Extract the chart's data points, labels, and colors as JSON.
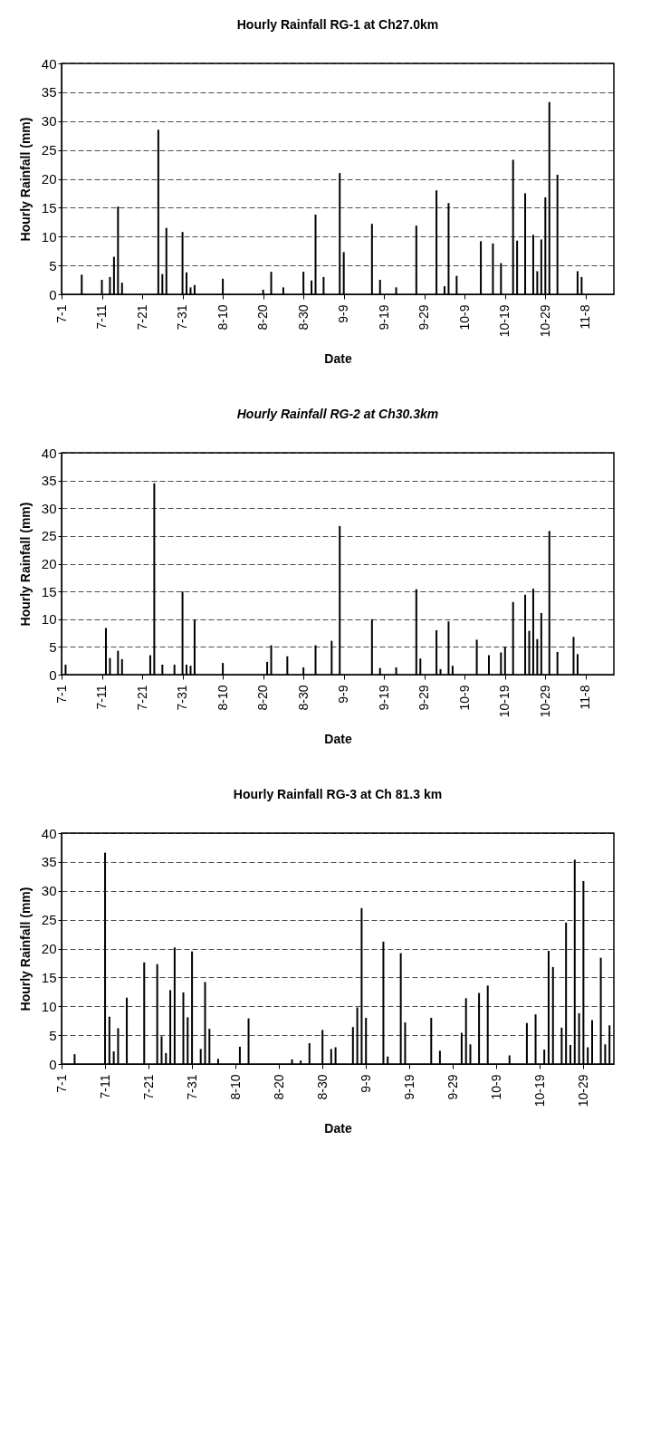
{
  "chart_data": [
    {
      "type": "bar",
      "title": "Hourly Rainfall  RG-1 at Ch27.0km",
      "xlabel": "Date",
      "ylabel": "Hourly Rainfall  (mm)",
      "color": "#000000",
      "grid": "y",
      "x": [
        "--07-06",
        "--07-11",
        "--07-13",
        "--07-14",
        "--07-15",
        "--07-16",
        "--07-25",
        "--07-26",
        "--07-27",
        "--07-31",
        "--08-01",
        "--08-02",
        "--08-03",
        "--08-10",
        "--08-20",
        "--08-22",
        "--08-25",
        "--08-30",
        "--09-01",
        "--09-02",
        "--09-04",
        "--09-08",
        "--09-09",
        "--09-16",
        "--09-18",
        "--09-22",
        "--09-27",
        "--10-02",
        "--10-04",
        "--10-05",
        "--10-07",
        "--10-13",
        "--10-16",
        "--10-18",
        "--10-21",
        "--10-22",
        "--10-24",
        "--10-26",
        "--10-27",
        "--10-28",
        "--10-29",
        "--10-30",
        "--11-01",
        "--11-06",
        "--11-07"
      ],
      "values": [
        3.4,
        2.5,
        3,
        6.5,
        15.2,
        2,
        28.5,
        3.5,
        11.5,
        10.8,
        3.8,
        1.2,
        1.6,
        2.7,
        0.8,
        3.9,
        1.2,
        3.9,
        2.4,
        13.8,
        3,
        21,
        7.3,
        12.2,
        2.5,
        1.2,
        11.9,
        18,
        1.4,
        15.8,
        3.2,
        9.2,
        8.8,
        5.4,
        23.3,
        9.3,
        17.5,
        10.3,
        4,
        9.5,
        16.8,
        33.3,
        20.7,
        4,
        3
      ],
      "xlim": [
        "--07-01",
        "--11-15"
      ],
      "ylim": [
        0,
        40
      ],
      "yticks": [
        0,
        5,
        10,
        15,
        20,
        25,
        30,
        35,
        40
      ],
      "xticks": [
        {
          "value": "--07-01",
          "label": "7-1"
        },
        {
          "value": "--07-11",
          "label": "7-11"
        },
        {
          "value": "--07-21",
          "label": "7-21"
        },
        {
          "value": "--07-31",
          "label": "7-31"
        },
        {
          "value": "--08-10",
          "label": "8-10"
        },
        {
          "value": "--08-20",
          "label": "8-20"
        },
        {
          "value": "--08-30",
          "label": "8-30"
        },
        {
          "value": "--09-09",
          "label": "9-9"
        },
        {
          "value": "--09-19",
          "label": "9-19"
        },
        {
          "value": "--09-29",
          "label": "9-29"
        },
        {
          "value": "--10-09",
          "label": "10-9"
        },
        {
          "value": "--10-19",
          "label": "10-19"
        },
        {
          "value": "--10-29",
          "label": "10-29"
        },
        {
          "value": "--11-08",
          "label": "11-8"
        }
      ]
    },
    {
      "type": "bar",
      "title": "Hourly Rainfall    RG-2 at Ch30.3km",
      "xlabel": "Date",
      "ylabel": "Hourly Rainfall  (mm)",
      "color": "#000000",
      "grid": "y",
      "x": [
        "--07-02",
        "--07-12",
        "--07-13",
        "--07-15",
        "--07-16",
        "--07-23",
        "--07-24",
        "--07-26",
        "--07-29",
        "--07-31",
        "--08-01",
        "--08-02",
        "--08-03",
        "--08-10",
        "--08-21",
        "--08-22",
        "--08-26",
        "--08-30",
        "--09-02",
        "--09-06",
        "--09-08",
        "--09-16",
        "--09-18",
        "--09-22",
        "--09-27",
        "--09-28",
        "--10-02",
        "--10-03",
        "--10-05",
        "--10-06",
        "--10-12",
        "--10-15",
        "--10-18",
        "--10-19",
        "--10-21",
        "--10-24",
        "--10-25",
        "--10-26",
        "--10-27",
        "--10-28",
        "--10-30",
        "--11-01",
        "--11-05",
        "--11-06"
      ],
      "values": [
        1.8,
        8.4,
        3,
        4.3,
        2.8,
        3.5,
        34.5,
        1.8,
        1.8,
        15,
        1.8,
        1.6,
        9.9,
        2.1,
        2.3,
        5.3,
        3.3,
        1.3,
        5.3,
        6.1,
        26.8,
        10,
        1.2,
        1.3,
        15.4,
        2.9,
        8,
        1,
        9.6,
        1.6,
        6.3,
        3.5,
        4,
        5,
        13.1,
        14.4,
        7.9,
        15.5,
        6.4,
        11.1,
        25.9,
        4.1,
        6.8,
        3.7
      ],
      "xlim": [
        "--07-01",
        "--11-15"
      ],
      "ylim": [
        0,
        40
      ],
      "yticks": [
        0,
        5,
        10,
        15,
        20,
        25,
        30,
        35,
        40
      ],
      "xticks": [
        {
          "value": "--07-01",
          "label": "7-1"
        },
        {
          "value": "--07-11",
          "label": "7-11"
        },
        {
          "value": "--07-21",
          "label": "7-21"
        },
        {
          "value": "--07-31",
          "label": "7-31"
        },
        {
          "value": "--08-10",
          "label": "8-10"
        },
        {
          "value": "--08-20",
          "label": "8-20"
        },
        {
          "value": "--08-30",
          "label": "8-30"
        },
        {
          "value": "--09-09",
          "label": "9-9"
        },
        {
          "value": "--09-19",
          "label": "9-19"
        },
        {
          "value": "--09-29",
          "label": "9-29"
        },
        {
          "value": "--10-09",
          "label": "10-9"
        },
        {
          "value": "--10-19",
          "label": "10-19"
        },
        {
          "value": "--10-29",
          "label": "10-29"
        },
        {
          "value": "--11-08",
          "label": "11-8"
        }
      ]
    },
    {
      "type": "bar",
      "title": "Hourly Rainfall  RG-3   at Ch 81.3 km",
      "xlabel": "Date",
      "ylabel": "Hourly Rainfall  (mm)",
      "color": "#000000",
      "grid": "y",
      "x": [
        "--07-04",
        "--07-11",
        "--07-12",
        "--07-13",
        "--07-14",
        "--07-16",
        "--07-20",
        "--07-23",
        "--07-24",
        "--07-25",
        "--07-26",
        "--07-27",
        "--07-29",
        "--07-30",
        "--07-31",
        "--08-02",
        "--08-03",
        "--08-04",
        "--08-06",
        "--08-11",
        "--08-13",
        "--08-23",
        "--08-25",
        "--08-27",
        "--08-30",
        "--09-01",
        "--09-02",
        "--09-06",
        "--09-07",
        "--09-08",
        "--09-09",
        "--09-13",
        "--09-14",
        "--09-17",
        "--09-18",
        "--09-24",
        "--09-26",
        "--10-01",
        "--10-02",
        "--10-03",
        "--10-05",
        "--10-07",
        "--10-12",
        "--10-16",
        "--10-18",
        "--10-20",
        "--10-21",
        "--10-22",
        "--10-24",
        "--10-25",
        "--10-26",
        "--10-27",
        "--10-28",
        "--10-29",
        "--10-30",
        "--10-31",
        "--11-02",
        "--11-03",
        "--11-04"
      ],
      "values": [
        1.7,
        36.6,
        8.2,
        2.2,
        6.2,
        11.5,
        17.6,
        17.3,
        4.8,
        1.9,
        12.8,
        20.2,
        12.4,
        8.1,
        19.5,
        2.6,
        14.2,
        6.1,
        0.9,
        3,
        7.9,
        0.8,
        0.6,
        3.6,
        5.9,
        2.6,
        2.9,
        6.4,
        9.8,
        27,
        8,
        21.2,
        1.3,
        19.2,
        7.2,
        8,
        2.3,
        5.4,
        11.4,
        3.4,
        12.3,
        13.6,
        1.5,
        7.1,
        8.6,
        2.5,
        19.6,
        16.8,
        6.3,
        24.5,
        3.3,
        35.4,
        8.8,
        31.7,
        2.9,
        7.6,
        18.4,
        3.4,
        6.7
      ],
      "xlim": [
        "--07-01",
        "--11-05"
      ],
      "ylim": [
        0,
        40
      ],
      "yticks": [
        0,
        5,
        10,
        15,
        20,
        25,
        30,
        35,
        40
      ],
      "xticks": [
        {
          "value": "--07-01",
          "label": "7-1"
        },
        {
          "value": "--07-11",
          "label": "7-11"
        },
        {
          "value": "--07-21",
          "label": "7-21"
        },
        {
          "value": "--07-31",
          "label": "7-31"
        },
        {
          "value": "--08-10",
          "label": "8-10"
        },
        {
          "value": "--08-20",
          "label": "8-20"
        },
        {
          "value": "--08-30",
          "label": "8-30"
        },
        {
          "value": "--09-09",
          "label": "9-9"
        },
        {
          "value": "--09-19",
          "label": "9-19"
        },
        {
          "value": "--09-29",
          "label": "9-29"
        },
        {
          "value": "--10-09",
          "label": "10-9"
        },
        {
          "value": "--10-19",
          "label": "10-19"
        },
        {
          "value": "--10-29",
          "label": "10-29"
        }
      ]
    }
  ]
}
